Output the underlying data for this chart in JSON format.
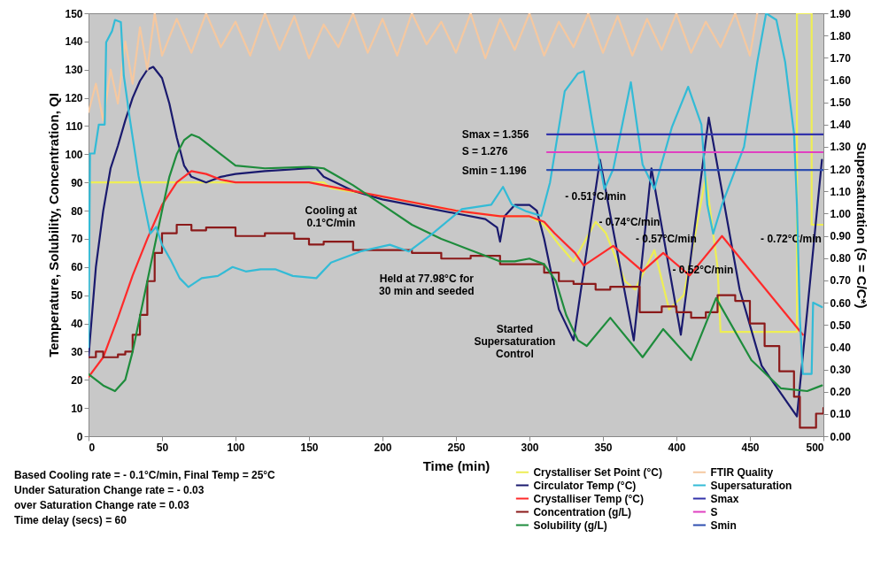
{
  "chart_data": {
    "type": "line",
    "xlabel": "Time (min)",
    "ylabel": "Temperature, Solubility, Concentration, QI",
    "y2label": "Supersaturation (S = C/C*)",
    "xlim": [
      0,
      500
    ],
    "xticks": [
      0,
      50,
      100,
      150,
      200,
      250,
      300,
      350,
      400,
      450,
      500
    ],
    "ylim": [
      0,
      150
    ],
    "yticks": [
      0,
      10,
      20,
      30,
      40,
      50,
      60,
      70,
      80,
      90,
      100,
      110,
      120,
      130,
      140,
      150
    ],
    "y2lim": [
      0,
      1.9
    ],
    "y2ticks": [
      {
        "value": 0,
        "label": "0.00"
      },
      {
        "value": 0.1,
        "label": "0.10"
      },
      {
        "value": 0.2,
        "label": "0.20"
      },
      {
        "value": 0.3,
        "label": "0.30"
      },
      {
        "value": 0.4,
        "label": "0.40"
      },
      {
        "value": 0.5,
        "label": "0.50"
      },
      {
        "value": 0.6,
        "label": "0.60"
      },
      {
        "value": 0.7,
        "label": "0.70"
      },
      {
        "value": 0.8,
        "label": "0.80"
      },
      {
        "value": 0.9,
        "label": "0.90"
      },
      {
        "value": 1.0,
        "label": "1.00"
      },
      {
        "value": 1.1,
        "label": "1.10"
      },
      {
        "value": 1.2,
        "label": "1.20"
      },
      {
        "value": 1.3,
        "label": "1.30"
      },
      {
        "value": 1.4,
        "label": "1.40"
      },
      {
        "value": 1.5,
        "label": "1.50"
      },
      {
        "value": 1.6,
        "label": "1.60"
      },
      {
        "value": 1.7,
        "label": "1.70"
      },
      {
        "value": 1.8,
        "label": "1.80"
      },
      {
        "value": 1.9,
        "label": "1.90"
      }
    ],
    "grid": false,
    "legend": "bottom right",
    "line_style": "solid",
    "series": [
      {
        "name": "Crystalliser Set Point (°C)",
        "color": "#eeee55",
        "x": [
          0,
          160,
          165,
          200,
          250,
          280,
          300,
          310,
          320,
          330,
          345,
          352,
          365,
          372,
          385,
          395,
          405,
          420,
          428,
          430,
          482,
          482,
          492,
          492,
          500
        ],
        "values": [
          90,
          90,
          88,
          85,
          80,
          78,
          78,
          75,
          68,
          62,
          76,
          72,
          55,
          52,
          66,
          45,
          50,
          92,
          60,
          37,
          37,
          150,
          150,
          75,
          75
        ]
      },
      {
        "name": "Circulator Temp (°C)",
        "color": "#1a1a6e",
        "x": [
          0,
          5,
          10,
          15,
          20,
          25,
          30,
          35,
          40,
          44,
          50,
          55,
          60,
          65,
          70,
          80,
          90,
          100,
          120,
          150,
          155,
          160,
          180,
          200,
          250,
          270,
          278,
          280,
          283,
          290,
          300,
          305,
          310,
          320,
          330,
          348,
          371,
          383,
          403,
          422,
          443,
          458,
          482,
          499
        ],
        "values": [
          28,
          60,
          80,
          95,
          103,
          112,
          120,
          126,
          130,
          131,
          127,
          118,
          106,
          96,
          92,
          90,
          92,
          93,
          94,
          95,
          95,
          92,
          87,
          84,
          79,
          77,
          74,
          69,
          78,
          82,
          82,
          80,
          70,
          45,
          34,
          98,
          34,
          95,
          36,
          113,
          52,
          25,
          7,
          98
        ]
      },
      {
        "name": "Crystalliser Temp (°C)",
        "color": "#ff2a2a",
        "x": [
          0,
          10,
          20,
          30,
          40,
          50,
          60,
          70,
          80,
          90,
          100,
          150,
          160,
          200,
          250,
          280,
          300,
          310,
          317,
          331,
          337,
          357,
          377,
          391,
          409,
          431,
          486
        ],
        "values": [
          21,
          28,
          42,
          57,
          70,
          82,
          90,
          94,
          93,
          91,
          90,
          90,
          89,
          85,
          80,
          78,
          78,
          76,
          72,
          65,
          60.5,
          67.5,
          58.5,
          65,
          57,
          71,
          36
        ]
      },
      {
        "name": "Concentration (g/L)",
        "color": "#8b1a1a",
        "type": "step",
        "x": [
          0,
          5,
          10,
          20,
          25,
          30,
          35,
          40,
          45,
          50,
          55,
          60,
          70,
          80,
          100,
          120,
          140,
          150,
          160,
          180,
          200,
          220,
          240,
          260,
          280,
          300,
          310,
          320,
          330,
          345,
          355,
          365,
          375,
          390,
          400,
          410,
          420,
          428,
          440,
          450,
          460,
          470,
          480,
          484,
          495,
          500
        ],
        "values": [
          28,
          30,
          28,
          29,
          30,
          36,
          43,
          55,
          65,
          72,
          72,
          75,
          73,
          74,
          71,
          72,
          70,
          68,
          69,
          66,
          66,
          65,
          63,
          64,
          61,
          61,
          58,
          55,
          54,
          52,
          53,
          53,
          44,
          46,
          44,
          42,
          44,
          50,
          48,
          40,
          32,
          23,
          14,
          3,
          8,
          10
        ]
      },
      {
        "name": "Solubility (g/L)",
        "color": "#1e8c3c",
        "x": [
          0,
          10,
          18,
          25,
          30,
          40,
          50,
          55,
          60,
          65,
          70,
          75,
          85,
          90,
          100,
          120,
          150,
          160,
          170,
          180,
          200,
          220,
          240,
          260,
          270,
          280,
          290,
          300,
          310,
          318,
          325,
          333,
          339,
          355,
          377,
          391,
          410,
          427,
          451,
          471,
          489,
          499
        ],
        "values": [
          22,
          18,
          16,
          20,
          30,
          55,
          80,
          92,
          100,
          105,
          107,
          106,
          102,
          100,
          96,
          95,
          95.5,
          95,
          92,
          89,
          82,
          75,
          70,
          66,
          64,
          62,
          62,
          63,
          61,
          55,
          43,
          34,
          32,
          42,
          28,
          38,
          27,
          49,
          27,
          17,
          16,
          18
        ]
      },
      {
        "name": "FTIR Quality",
        "color": "#f5c8a0",
        "x": [
          0,
          5,
          10,
          15,
          20,
          25,
          30,
          35,
          40,
          45,
          50,
          60,
          70,
          80,
          90,
          100,
          110,
          120,
          130,
          140,
          150,
          160,
          170,
          180,
          190,
          200,
          210,
          220,
          230,
          240,
          250,
          260,
          270,
          280,
          290,
          300,
          310,
          320,
          330,
          340,
          350,
          360,
          370,
          380,
          390,
          400,
          410,
          420,
          430,
          440,
          450,
          455
        ],
        "values": [
          115,
          125,
          112,
          130,
          118,
          140,
          125,
          145,
          130,
          150,
          135,
          148,
          136,
          150,
          138,
          147,
          135,
          150,
          137,
          149,
          134,
          146,
          138,
          150,
          136,
          148,
          135,
          150,
          139,
          147,
          136,
          150,
          134,
          148,
          137,
          150,
          135,
          147,
          138,
          150,
          136,
          149,
          135,
          148,
          137,
          150,
          136,
          147,
          138,
          150,
          135,
          150
        ]
      },
      {
        "name": "Supersaturation",
        "color": "#33bbd6",
        "axis": "y2",
        "x": [
          0,
          1,
          4,
          7,
          11,
          12,
          16,
          18,
          22,
          24,
          28,
          34,
          38,
          42,
          46,
          50,
          56,
          62,
          68,
          77,
          88,
          98,
          107,
          117,
          127,
          139,
          155,
          165,
          185,
          205,
          218,
          234,
          254,
          274,
          282,
          288,
          298,
          308,
          314,
          324,
          333,
          337,
          343,
          351,
          357,
          369,
          377,
          385,
          397,
          408,
          417,
          421,
          425,
          431,
          446,
          455,
          461,
          468,
          474,
          480,
          482,
          484,
          486,
          492,
          493,
          499
        ],
        "values": [
          0.4,
          1.27,
          1.27,
          1.4,
          1.4,
          1.77,
          1.82,
          1.87,
          1.86,
          1.62,
          1.43,
          1.17,
          1.04,
          0.91,
          0.94,
          0.86,
          0.79,
          0.71,
          0.67,
          0.71,
          0.72,
          0.76,
          0.74,
          0.75,
          0.75,
          0.72,
          0.71,
          0.78,
          0.83,
          0.86,
          0.83,
          0.91,
          1.02,
          1.04,
          1.12,
          1.04,
          1.01,
          0.99,
          1.14,
          1.55,
          1.63,
          1.64,
          1.4,
          1.11,
          1.2,
          1.59,
          1.22,
          1.11,
          1.39,
          1.57,
          1.4,
          1.04,
          0.91,
          1.04,
          1.3,
          1.68,
          1.9,
          1.87,
          1.68,
          1.36,
          1.04,
          0.53,
          0.28,
          0.28,
          0.6,
          0.58
        ]
      },
      {
        "name": "Smax",
        "color": "#3333aa",
        "axis": "y2",
        "x": [
          312,
          500
        ],
        "values": [
          1.356,
          1.356
        ]
      },
      {
        "name": "S",
        "color": "#e040c0",
        "axis": "y2",
        "x": [
          312,
          500
        ],
        "values": [
          1.276,
          1.276
        ]
      },
      {
        "name": "Smin",
        "color": "#2f4fb0",
        "axis": "y2",
        "x": [
          312,
          500
        ],
        "values": [
          1.196,
          1.196
        ]
      }
    ],
    "annotations": [
      "Smax = 1.356",
      "S      = 1.276",
      "Smin  = 1.196",
      "Cooling at\n0.1°C/min",
      "Held at 77.98°C for\n30 min and seeded",
      "Started\nSupersaturation\nControl",
      "- 0.51°C/min",
      "- 0.74°C/min",
      "- 0.57°C/min",
      "- 0.52°C/min",
      "- 0.72°C/min",
      "Based Cooling rate = - 0.1°C/min, Final Temp = 25°C",
      "Under Saturation Change rate = - 0.03",
      "over Saturation Change rate = 0.03",
      "Time delay (secs)  = 60"
    ]
  }
}
